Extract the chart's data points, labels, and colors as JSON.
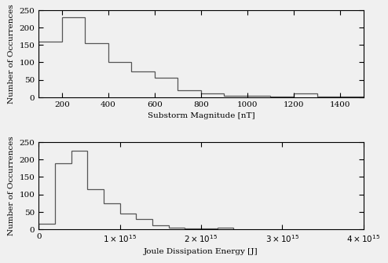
{
  "upper_bin_edges": [
    100,
    200,
    300,
    400,
    500,
    600,
    700,
    800,
    900,
    1000,
    1100,
    1200,
    1300,
    1400,
    1500
  ],
  "upper_counts": [
    160,
    230,
    155,
    100,
    75,
    55,
    20,
    10,
    5,
    5,
    1,
    10,
    2,
    1
  ],
  "lower_bin_edges_e15": [
    0,
    0.2,
    0.4,
    0.6,
    0.8,
    1.0,
    1.2,
    1.4,
    1.6,
    1.8,
    2.0,
    2.2,
    2.4
  ],
  "lower_counts": [
    15,
    190,
    225,
    115,
    75,
    45,
    30,
    10,
    5,
    2,
    1,
    3
  ],
  "upper_xlabel": "Substorm Magnitude [nT]",
  "lower_xlabel": "Joule Dissipation Energy [J]",
  "ylabel": "Number of Occurrences",
  "upper_xlim": [
    100,
    1500
  ],
  "upper_ylim": [
    0,
    250
  ],
  "lower_xlim": [
    0,
    4000000000000000.0
  ],
  "lower_ylim": [
    0,
    250
  ],
  "line_color": "#555555",
  "bg_color": "#f0f0f0",
  "tick_color": "#000000",
  "fontsize": 7.5,
  "font_family": "serif"
}
